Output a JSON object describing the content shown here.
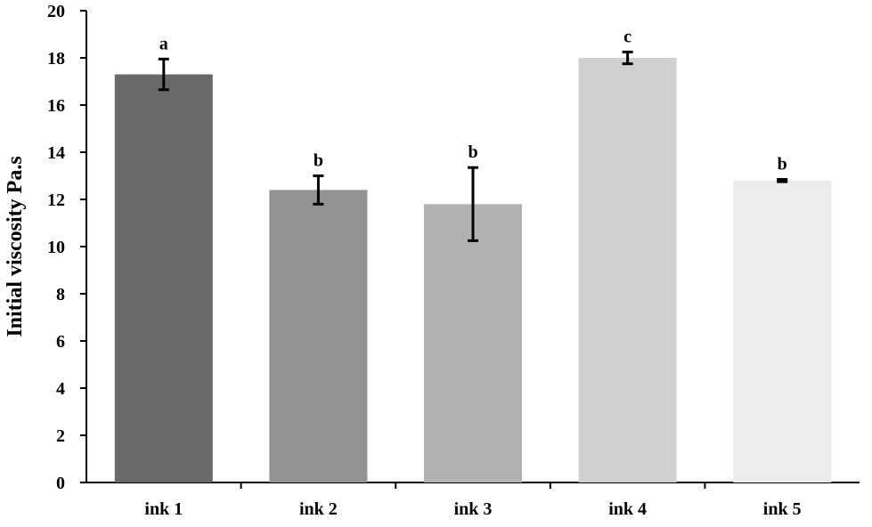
{
  "chart_data": {
    "type": "bar",
    "title": "",
    "xlabel": "",
    "ylabel": "Initial viscosity Pa.s",
    "ylim": [
      0,
      20
    ],
    "yticks": [
      0,
      2,
      4,
      6,
      8,
      10,
      12,
      14,
      16,
      18,
      20
    ],
    "categories": [
      "ink 1",
      "ink 2",
      "ink 3",
      "ink 4",
      "ink 5"
    ],
    "values": [
      17.3,
      12.4,
      11.8,
      18.0,
      12.8
    ],
    "errors": [
      0.65,
      0.6,
      1.55,
      0.25,
      0.05
    ],
    "significance_labels": [
      "a",
      "b",
      "b",
      "c",
      "b"
    ],
    "bar_colors": [
      "#696969",
      "#929292",
      "#b1b1b1",
      "#d0d0d0",
      "#ececec"
    ],
    "grid": false,
    "legend": "none"
  }
}
